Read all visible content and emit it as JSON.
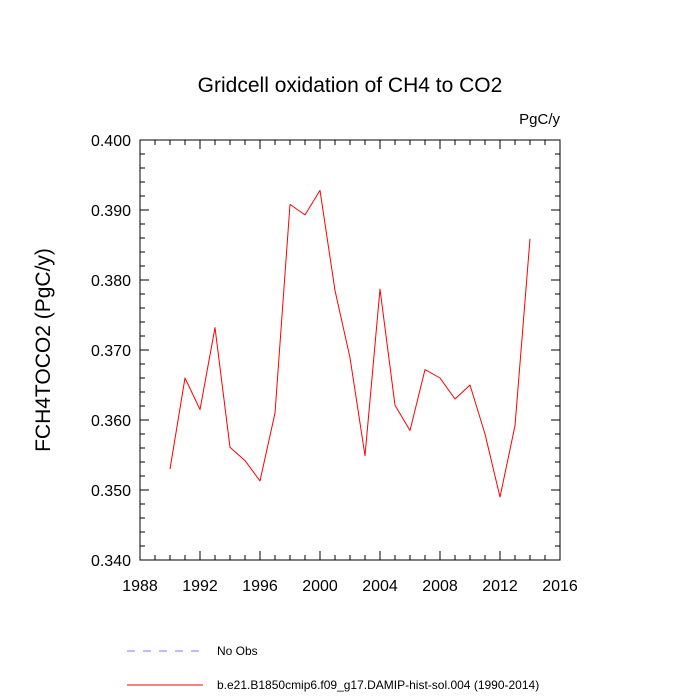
{
  "chart_data": {
    "type": "line",
    "title": "Gridcell oxidation of CH4 to CO2",
    "units": "PgC/y",
    "ylabel": "FCH4TOCO2  (PgC/y)",
    "xlabel": "",
    "xlim": [
      1988,
      2016
    ],
    "ylim": [
      0.34,
      0.4
    ],
    "x_ticks": [
      1988,
      1992,
      1996,
      2000,
      2004,
      2008,
      2012,
      2016
    ],
    "x_tick_labels": [
      "1988",
      "1992",
      "1996",
      "2000",
      "2004",
      "2008",
      "2012",
      "2016"
    ],
    "y_ticks": [
      0.34,
      0.35,
      0.36,
      0.37,
      0.38,
      0.39,
      0.4
    ],
    "y_tick_labels": [
      "0.340",
      "0.350",
      "0.360",
      "0.370",
      "0.380",
      "0.390",
      "0.400"
    ],
    "grid": false,
    "series": [
      {
        "name": "b.e21.B1850cmip6.f09_g17.DAMIP-hist-sol.004 (1990-2014)",
        "color": "#ff0000",
        "style": "solid",
        "x": [
          1990,
          1991,
          1992,
          1993,
          1994,
          1995,
          1996,
          1997,
          1998,
          1999,
          2000,
          2001,
          2002,
          2003,
          2004,
          2005,
          2006,
          2007,
          2008,
          2009,
          2010,
          2011,
          2012,
          2013,
          2014
        ],
        "y": [
          0.353,
          0.366,
          0.3615,
          0.3732,
          0.3561,
          0.3542,
          0.3513,
          0.361,
          0.3908,
          0.3893,
          0.3928,
          0.3785,
          0.3689,
          0.3549,
          0.3787,
          0.3621,
          0.3585,
          0.3672,
          0.366,
          0.363,
          0.365,
          0.358,
          0.349,
          0.3592,
          0.3859
        ]
      }
    ],
    "legend": [
      {
        "label": "No Obs",
        "color": "#7b7bff",
        "style": "dashed"
      },
      {
        "label": "b.e21.B1850cmip6.f09_g17.DAMIP-hist-sol.004 (1990-2014)",
        "color": "#ff0000",
        "style": "solid"
      }
    ]
  }
}
